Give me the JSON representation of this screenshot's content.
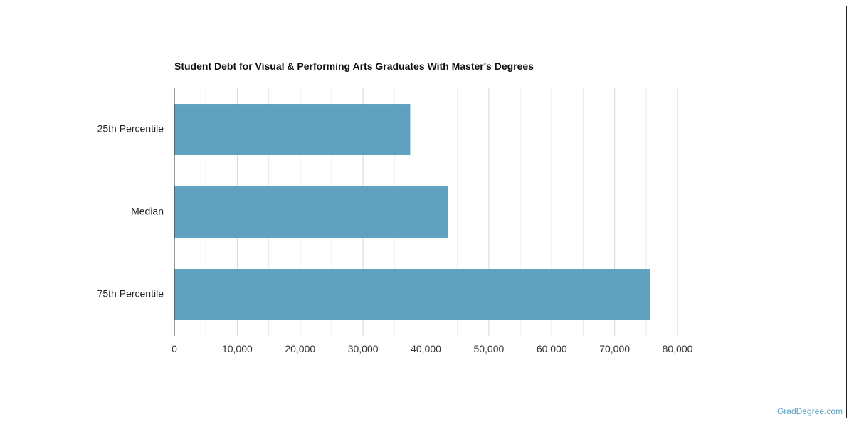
{
  "chart_data": {
    "type": "bar",
    "orientation": "horizontal",
    "title": "Student Debt for Visual & Performing Arts Graduates With Master's Degrees",
    "categories": [
      "25th Percentile",
      "Median",
      "75th Percentile"
    ],
    "values": [
      37500,
      43500,
      75700
    ],
    "xlim": [
      0,
      80000
    ],
    "x_ticks": [
      0,
      10000,
      20000,
      30000,
      40000,
      50000,
      60000,
      70000,
      80000
    ],
    "x_tick_labels": [
      "0",
      "10,000",
      "20,000",
      "30,000",
      "40,000",
      "50,000",
      "60,000",
      "70,000",
      "80,000"
    ],
    "xlabel": "",
    "ylabel": "",
    "grid": true,
    "bar_color": "#5ea2bf",
    "gridline_color": "#dddddd"
  },
  "footer": {
    "credit": "GradDegree.com"
  }
}
